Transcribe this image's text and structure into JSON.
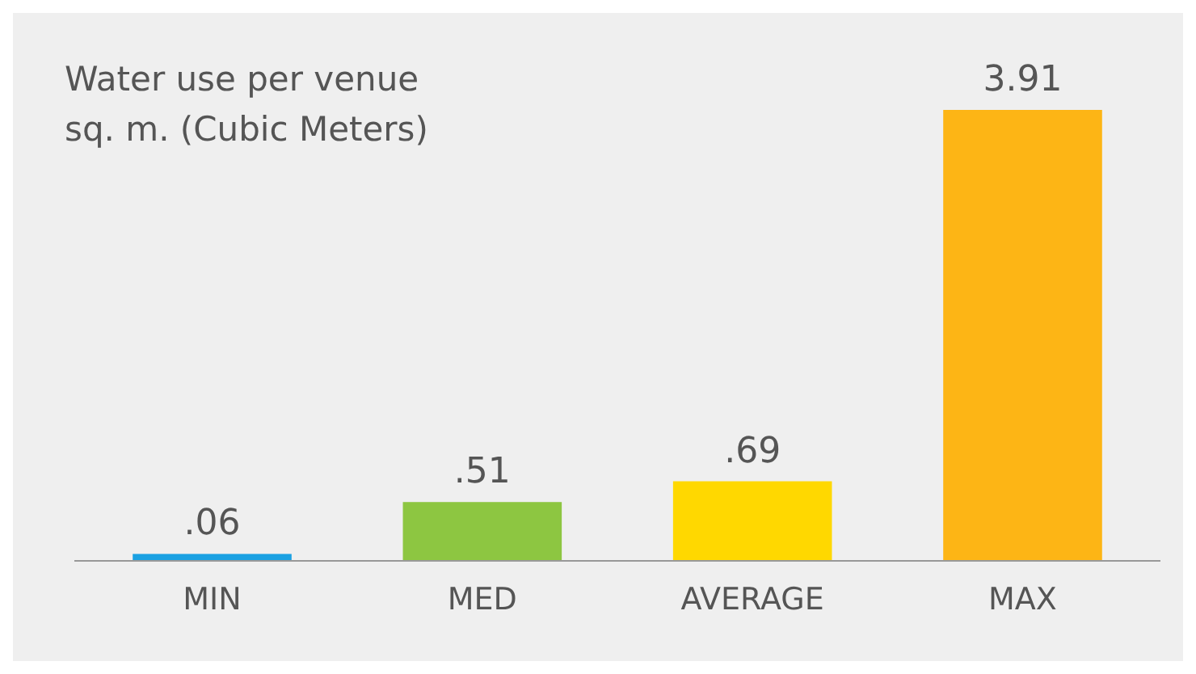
{
  "chart_data": {
    "type": "bar",
    "title": "Water use per venue sq. m. (Cubic Meters)",
    "categories": [
      "MIN",
      "MED",
      "AVERAGE",
      "MAX"
    ],
    "values": [
      0.06,
      0.51,
      0.69,
      3.91
    ],
    "colors": [
      "#1ba1e2",
      "#8dc641",
      "#ffd800",
      "#fdb515"
    ],
    "value_labels": [
      ".06",
      ".51",
      ".69",
      "3.91"
    ]
  }
}
